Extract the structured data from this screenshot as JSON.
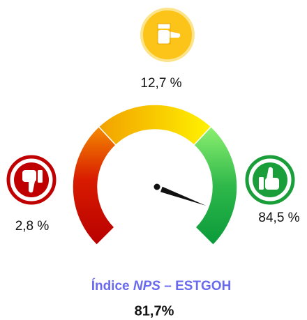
{
  "chart_data": {
    "type": "gauge",
    "title_parts": [
      "Índice",
      "NPS",
      "– ESTGOH"
    ],
    "value": 81.7,
    "value_label": "81,7%",
    "gauge_lim": [
      -100,
      100
    ],
    "values": [
      2.8,
      12.7,
      84.5
    ],
    "value_labels": [
      "2,8 %",
      "12,7 %",
      "84,5 %"
    ],
    "colors": [
      "#c00000",
      "#fcc419",
      "#1a9e3a"
    ]
  }
}
